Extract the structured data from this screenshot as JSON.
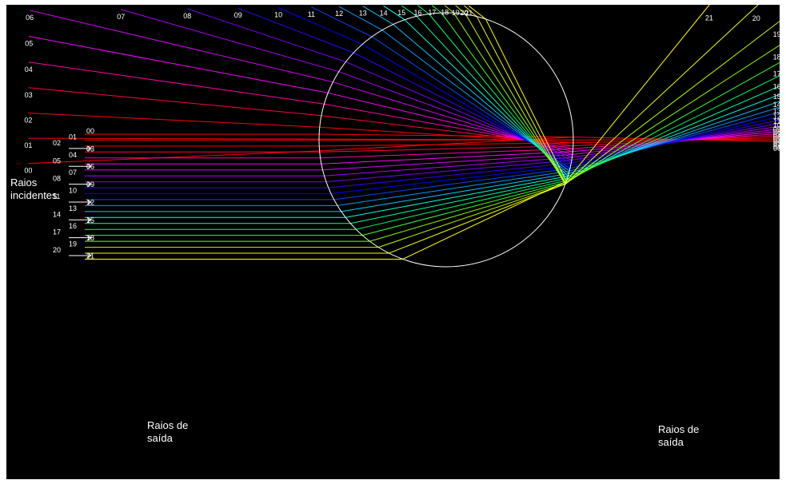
{
  "captions": {
    "incident": [
      "Raios",
      "incidentes"
    ],
    "exit_left": [
      "Raios de",
      "saída"
    ],
    "exit_right": [
      "Raios de",
      "saída"
    ]
  },
  "rays": [
    {
      "label": "00",
      "color": "#ff0000"
    },
    {
      "label": "01",
      "color": "#ff0000"
    },
    {
      "label": "02",
      "color": "#ff0000"
    },
    {
      "label": "03",
      "color": "#ff0044"
    },
    {
      "label": "04",
      "color": "#ff00aa"
    },
    {
      "label": "05",
      "color": "#ff00ff"
    },
    {
      "label": "06",
      "color": "#dd00ff"
    },
    {
      "label": "07",
      "color": "#aa00ff"
    },
    {
      "label": "08",
      "color": "#7700ff"
    },
    {
      "label": "09",
      "color": "#3300ff"
    },
    {
      "label": "10",
      "color": "#0000ff"
    },
    {
      "label": "11",
      "color": "#0044ff"
    },
    {
      "label": "12",
      "color": "#0099ff"
    },
    {
      "label": "13",
      "color": "#00ccff"
    },
    {
      "label": "14",
      "color": "#00ffdd"
    },
    {
      "label": "15",
      "color": "#00ffaa"
    },
    {
      "label": "16",
      "color": "#00ff66"
    },
    {
      "label": "17",
      "color": "#33ff33"
    },
    {
      "label": "18",
      "color": "#88ff00"
    },
    {
      "label": "19",
      "color": "#bbff00"
    },
    {
      "label": "20",
      "color": "#eeff00"
    },
    {
      "label": "21",
      "color": "#ffff00"
    }
  ]
}
